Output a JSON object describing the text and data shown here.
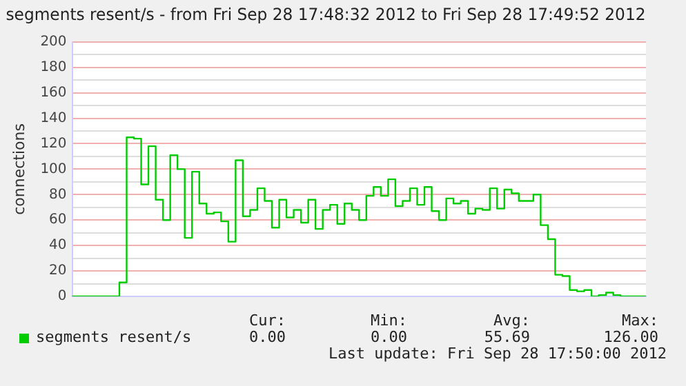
{
  "chart_data": {
    "type": "step",
    "title": "segments resent/s - from Fri Sep 28 17:48:32 2012 to Fri Sep 28 17:49:52 2012",
    "ylabel": "connections",
    "categories": [
      null,
      null,
      null,
      null,
      null,
      null,
      null,
      null,
      null,
      null,
      null,
      null,
      null,
      null,
      null,
      null,
      null,
      null,
      null,
      null,
      null,
      null,
      null,
      null,
      null,
      null,
      null,
      null,
      null,
      null,
      null,
      null,
      null,
      null,
      null,
      null,
      null,
      null,
      null,
      null,
      null,
      null,
      null,
      null,
      null,
      null,
      null,
      null,
      null,
      null,
      null,
      null,
      null,
      null,
      null,
      null,
      null,
      null,
      null,
      null,
      null,
      null,
      null,
      null,
      null,
      null,
      null,
      null,
      null,
      null,
      null,
      null,
      null,
      null,
      null,
      null,
      null,
      null,
      null,
      null
    ],
    "series": [
      {
        "name": "segments resent/s",
        "color": "#00cc00",
        "values": [
          0,
          0,
          0,
          0,
          0,
          0,
          0,
          11,
          125,
          124,
          88,
          118,
          76,
          60,
          111,
          100,
          46,
          98,
          73,
          65,
          66,
          59,
          43,
          107,
          63,
          68,
          85,
          75,
          54,
          76,
          62,
          68,
          58,
          76,
          53,
          68,
          72,
          57,
          73,
          68,
          60,
          79,
          86,
          79,
          92,
          71,
          75,
          85,
          72,
          86,
          67,
          60,
          77,
          73,
          75,
          65,
          69,
          68,
          85,
          69,
          84,
          81,
          75,
          75,
          80,
          56,
          45,
          17,
          16,
          5,
          4,
          5,
          0,
          1,
          3,
          1,
          0,
          0,
          0,
          0
        ]
      }
    ],
    "ylim": [
      0,
      200
    ],
    "yticks": [
      0,
      {
        "value": 10,
        "label": null
      },
      20,
      {
        "value": 30,
        "label": null
      },
      40,
      {
        "value": 50,
        "label": null
      },
      60,
      {
        "value": 70,
        "label": null
      },
      80,
      {
        "value": 90,
        "label": null
      },
      100,
      {
        "value": 110,
        "label": null
      },
      120,
      {
        "value": 130,
        "label": null
      },
      140,
      {
        "value": 150,
        "label": null
      },
      160,
      {
        "value": 170,
        "label": null
      },
      180,
      {
        "value": 190,
        "label": null
      },
      200
    ],
    "grid": "y",
    "legend": "bottom left",
    "tick_labels": "y",
    "annotations": [
      "Cur:",
      "Min:",
      "Avg:",
      "Max:",
      "0.00",
      "0.00",
      "55.69",
      "126.00",
      "Last update: Fri Sep 28 17:50:00 2012"
    ]
  }
}
